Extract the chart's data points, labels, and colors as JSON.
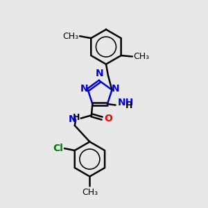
{
  "background_color": "#e8e8e8",
  "bond_color": "#000000",
  "N_color": "#0000dd",
  "O_color": "#ff0000",
  "Cl_color": "#008000",
  "line_width": 1.8,
  "font_size": 10,
  "fig_size": [
    3.0,
    3.0
  ],
  "dpi": 100,
  "xlim": [
    0,
    10
  ],
  "ylim": [
    0,
    10
  ]
}
